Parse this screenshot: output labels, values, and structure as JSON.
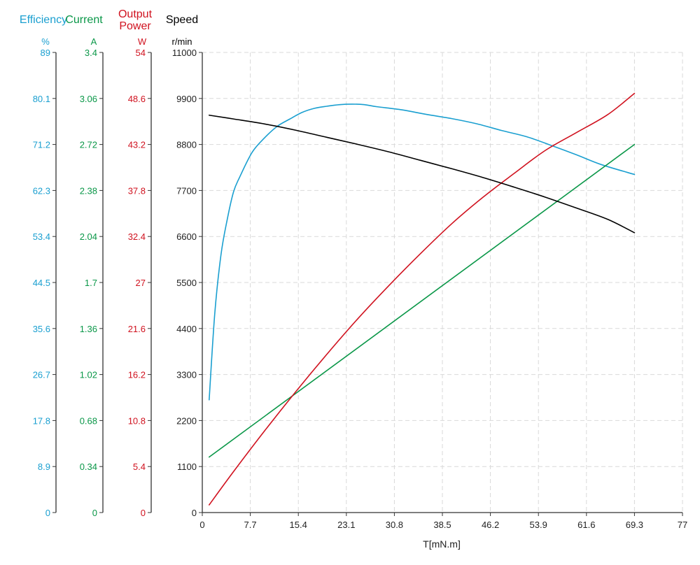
{
  "chart_data": {
    "type": "line",
    "colors": {
      "efficiency": "#1a9fd0",
      "current": "#0a9748",
      "output_power": "#d0121f",
      "speed": "#000000"
    },
    "axis_titles": {
      "efficiency": "Efficiency",
      "current": "Current",
      "output_power_line1": "Output",
      "output_power_line2": "Power",
      "speed": "Speed"
    },
    "axis_units": {
      "efficiency": "%",
      "current": "A",
      "output_power": "W",
      "speed": "r/min"
    },
    "xlabel": "T[mN.m]",
    "xlim": [
      0,
      77
    ],
    "x_ticks": [
      "0",
      "7.7",
      "15.4",
      "23.1",
      "30.8",
      "38.5",
      "46.2",
      "53.9",
      "61.6",
      "69.3",
      "77"
    ],
    "y_axes": {
      "efficiency": {
        "ylim": [
          0,
          89
        ],
        "ticks": [
          "0",
          "8.9",
          "17.8",
          "26.7",
          "35.6",
          "44.5",
          "53.4",
          "62.3",
          "71.2",
          "80.1",
          "89"
        ]
      },
      "current": {
        "ylim": [
          0,
          3.4
        ],
        "ticks": [
          "0",
          "0.34",
          "0.68",
          "1.02",
          "1.36",
          "1.7",
          "2.04",
          "2.38",
          "2.72",
          "3.06",
          "3.4"
        ]
      },
      "output_power": {
        "ylim": [
          0,
          54
        ],
        "ticks": [
          "0",
          "5.4",
          "10.8",
          "16.2",
          "21.6",
          "27",
          "32.4",
          "37.8",
          "43.2",
          "48.6",
          "54"
        ]
      },
      "speed": {
        "ylim": [
          0,
          11000
        ],
        "ticks": [
          "0",
          "1100",
          "2200",
          "3300",
          "4400",
          "5500",
          "6600",
          "7700",
          "8800",
          "9900",
          "11000"
        ]
      }
    },
    "grid": true,
    "series": [
      {
        "name": "Efficiency",
        "axis": "efficiency",
        "x": [
          1.1,
          2.0,
          3.0,
          4.0,
          5.0,
          6.0,
          8.0,
          10.0,
          12.0,
          14.0,
          16.0,
          18.0,
          20.0,
          22.0,
          24.0,
          26.0,
          28.0,
          32.0,
          36.0,
          40.0,
          44.0,
          48.0,
          52.0,
          56.0,
          60.0,
          64.0,
          69.3
        ],
        "values": [
          21.8,
          38.5,
          49.9,
          56.7,
          62.0,
          64.9,
          69.7,
          72.5,
          74.7,
          76.1,
          77.4,
          78.2,
          78.6,
          78.9,
          79.0,
          78.9,
          78.5,
          77.9,
          77.0,
          76.2,
          75.2,
          73.9,
          72.7,
          71.0,
          69.2,
          67.3,
          65.4
        ]
      },
      {
        "name": "Current",
        "axis": "current",
        "x": [
          1.1,
          69.3
        ],
        "values": [
          0.41,
          2.72
        ]
      },
      {
        "name": "Output Power",
        "axis": "output_power",
        "x": [
          1.1,
          5.0,
          10.0,
          15.0,
          20.0,
          25.0,
          30.0,
          35.0,
          40.0,
          45.0,
          50.0,
          55.0,
          60.0,
          65.0,
          69.3
        ],
        "values": [
          0.9,
          4.8,
          9.6,
          14.2,
          18.6,
          22.8,
          26.7,
          30.4,
          33.9,
          37.0,
          39.8,
          42.5,
          44.6,
          46.7,
          49.2
        ]
      },
      {
        "name": "Speed",
        "axis": "speed",
        "x": [
          1.1,
          5.0,
          10.0,
          15.0,
          20.0,
          25.0,
          30.0,
          35.0,
          40.0,
          45.0,
          50.0,
          55.0,
          60.0,
          65.0,
          69.3
        ],
        "values": [
          9500,
          9410,
          9290,
          9140,
          8970,
          8800,
          8620,
          8420,
          8220,
          8010,
          7780,
          7540,
          7280,
          7010,
          6690
        ]
      }
    ]
  }
}
